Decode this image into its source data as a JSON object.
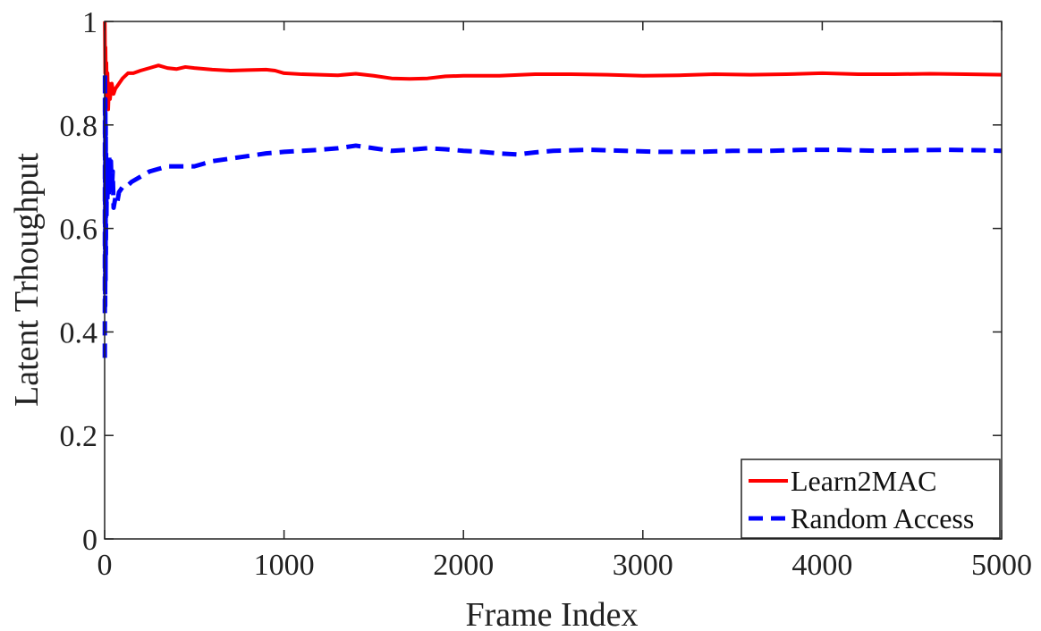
{
  "chart_data": {
    "type": "line",
    "title": "",
    "xlabel": "Frame Index",
    "ylabel": "Latent Trhoughput",
    "xlim": [
      0,
      5000
    ],
    "ylim": [
      0,
      1
    ],
    "xticks": [
      0,
      1000,
      2000,
      3000,
      4000,
      5000
    ],
    "yticks": [
      0,
      0.2,
      0.4,
      0.6,
      0.8,
      1
    ],
    "xtick_labels": [
      "0",
      "1000",
      "2000",
      "3000",
      "4000",
      "5000"
    ],
    "ytick_labels": [
      "0",
      "0.2",
      "0.4",
      "0.6",
      "0.8",
      "1"
    ],
    "grid": false,
    "legend_position": "bottom-right",
    "series": [
      {
        "name": "Learn2MAC",
        "color": "#ff0000",
        "style": "solid",
        "points": [
          [
            1,
            1.0
          ],
          [
            3,
            0.9
          ],
          [
            5,
            0.95
          ],
          [
            8,
            0.86
          ],
          [
            10,
            0.92
          ],
          [
            13,
            0.84
          ],
          [
            16,
            0.9
          ],
          [
            20,
            0.83
          ],
          [
            25,
            0.88
          ],
          [
            30,
            0.85
          ],
          [
            40,
            0.88
          ],
          [
            50,
            0.86
          ],
          [
            60,
            0.87
          ],
          [
            80,
            0.88
          ],
          [
            100,
            0.89
          ],
          [
            130,
            0.9
          ],
          [
            160,
            0.9
          ],
          [
            200,
            0.905
          ],
          [
            250,
            0.91
          ],
          [
            300,
            0.915
          ],
          [
            350,
            0.91
          ],
          [
            400,
            0.908
          ],
          [
            450,
            0.912
          ],
          [
            500,
            0.91
          ],
          [
            600,
            0.907
          ],
          [
            700,
            0.905
          ],
          [
            800,
            0.906
          ],
          [
            900,
            0.907
          ],
          [
            950,
            0.905
          ],
          [
            1000,
            0.9
          ],
          [
            1100,
            0.898
          ],
          [
            1200,
            0.897
          ],
          [
            1300,
            0.896
          ],
          [
            1400,
            0.899
          ],
          [
            1500,
            0.895
          ],
          [
            1600,
            0.89
          ],
          [
            1700,
            0.889
          ],
          [
            1800,
            0.89
          ],
          [
            1900,
            0.894
          ],
          [
            2000,
            0.895
          ],
          [
            2200,
            0.895
          ],
          [
            2400,
            0.898
          ],
          [
            2600,
            0.898
          ],
          [
            2800,
            0.897
          ],
          [
            3000,
            0.895
          ],
          [
            3200,
            0.896
          ],
          [
            3400,
            0.898
          ],
          [
            3600,
            0.897
          ],
          [
            3800,
            0.898
          ],
          [
            4000,
            0.9
          ],
          [
            4200,
            0.898
          ],
          [
            4400,
            0.898
          ],
          [
            4600,
            0.899
          ],
          [
            4800,
            0.898
          ],
          [
            5000,
            0.897
          ]
        ]
      },
      {
        "name": "Random Access",
        "color": "#0000ff",
        "style": "dashed",
        "points": [
          [
            1,
            0.35
          ],
          [
            2,
            0.9
          ],
          [
            3,
            0.45
          ],
          [
            4,
            0.85
          ],
          [
            5,
            0.5
          ],
          [
            6,
            0.8
          ],
          [
            7,
            0.55
          ],
          [
            8,
            0.75
          ],
          [
            10,
            0.62
          ],
          [
            12,
            0.72
          ],
          [
            15,
            0.65
          ],
          [
            18,
            0.72
          ],
          [
            22,
            0.66
          ],
          [
            26,
            0.74
          ],
          [
            30,
            0.68
          ],
          [
            35,
            0.73
          ],
          [
            40,
            0.67
          ],
          [
            45,
            0.71
          ],
          [
            50,
            0.64
          ],
          [
            60,
            0.66
          ],
          [
            70,
            0.65
          ],
          [
            80,
            0.67
          ],
          [
            100,
            0.68
          ],
          [
            120,
            0.68
          ],
          [
            150,
            0.69
          ],
          [
            200,
            0.7
          ],
          [
            250,
            0.71
          ],
          [
            300,
            0.715
          ],
          [
            350,
            0.72
          ],
          [
            400,
            0.72
          ],
          [
            450,
            0.72
          ],
          [
            500,
            0.72
          ],
          [
            550,
            0.725
          ],
          [
            600,
            0.73
          ],
          [
            700,
            0.735
          ],
          [
            800,
            0.74
          ],
          [
            900,
            0.745
          ],
          [
            1000,
            0.748
          ],
          [
            1100,
            0.75
          ],
          [
            1200,
            0.752
          ],
          [
            1300,
            0.755
          ],
          [
            1400,
            0.76
          ],
          [
            1500,
            0.755
          ],
          [
            1600,
            0.75
          ],
          [
            1700,
            0.752
          ],
          [
            1800,
            0.755
          ],
          [
            1900,
            0.753
          ],
          [
            2000,
            0.75
          ],
          [
            2100,
            0.748
          ],
          [
            2200,
            0.745
          ],
          [
            2300,
            0.743
          ],
          [
            2400,
            0.747
          ],
          [
            2500,
            0.75
          ],
          [
            2700,
            0.752
          ],
          [
            2900,
            0.75
          ],
          [
            3100,
            0.748
          ],
          [
            3300,
            0.748
          ],
          [
            3500,
            0.75
          ],
          [
            3700,
            0.75
          ],
          [
            3900,
            0.752
          ],
          [
            4100,
            0.752
          ],
          [
            4300,
            0.75
          ],
          [
            4500,
            0.751
          ],
          [
            4700,
            0.752
          ],
          [
            4900,
            0.751
          ],
          [
            5000,
            0.75
          ]
        ]
      }
    ]
  }
}
